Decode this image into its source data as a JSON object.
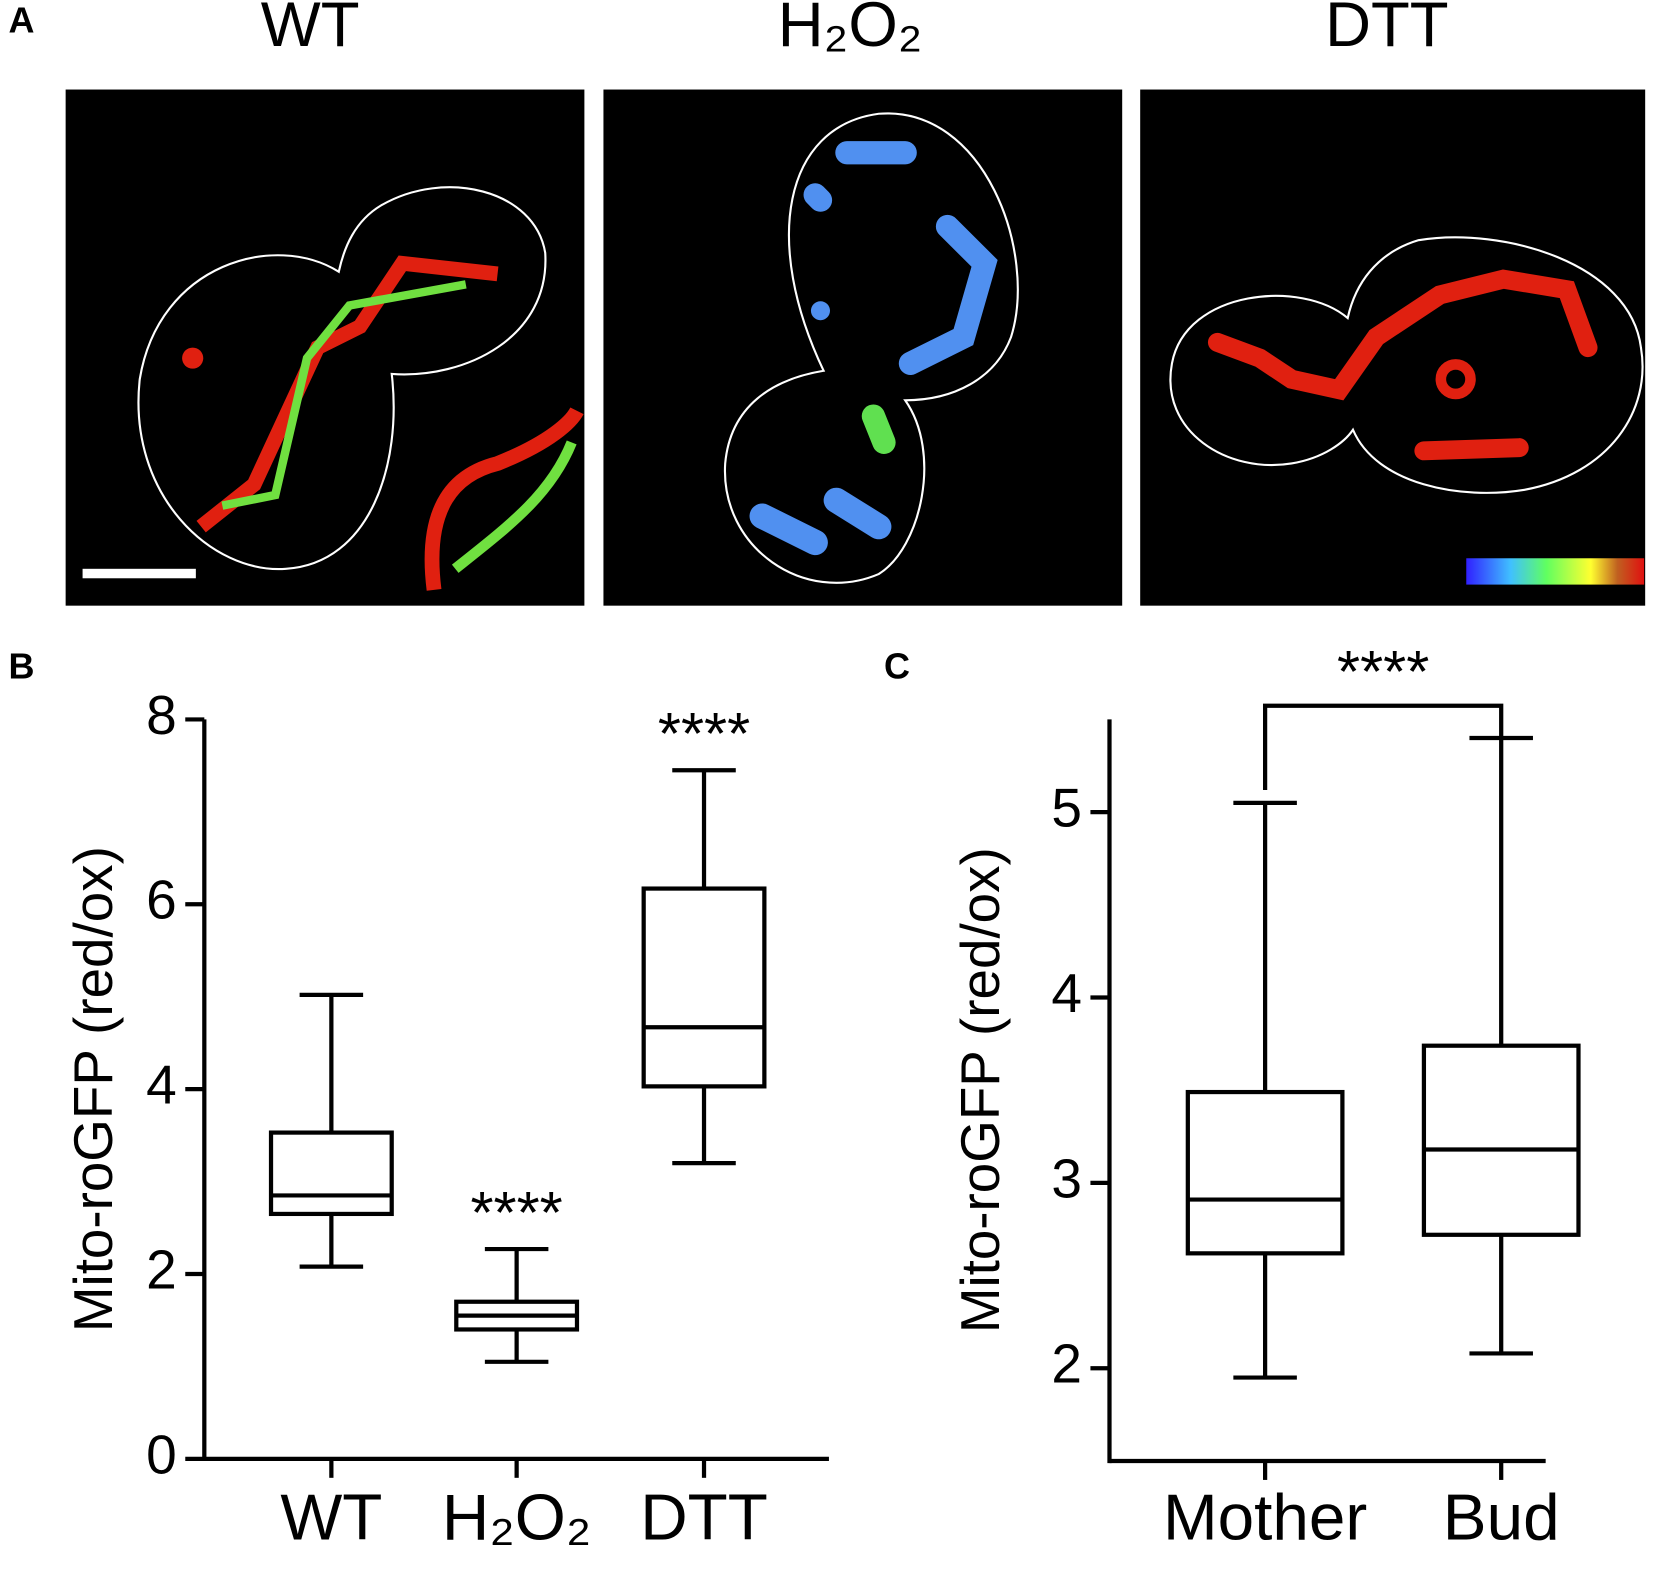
{
  "images": {
    "label": "A",
    "titles": [
      "WT",
      "H₂O₂",
      "DTT"
    ]
  },
  "chart_data": [
    {
      "type": "box",
      "label": "B",
      "ylabel": "Mito-roGFP (red/ox)",
      "categories": [
        "WT",
        "H₂O₂",
        "DTT"
      ],
      "whisker_low": [
        2.08,
        1.05,
        3.2
      ],
      "q1": [
        2.65,
        1.4,
        4.03
      ],
      "median": [
        2.85,
        1.55,
        4.67
      ],
      "q3": [
        3.53,
        1.7,
        6.17
      ],
      "whisker_high": [
        5.02,
        2.27,
        7.45
      ],
      "significance": [
        null,
        "****",
        "****"
      ],
      "ylim": [
        0,
        8
      ],
      "yticks": [
        0,
        2,
        4,
        6,
        8
      ],
      "color": "#000000"
    },
    {
      "type": "box",
      "label": "C",
      "ylabel": "Mito-roGFP (red/ox)",
      "categories": [
        "Mother",
        "Bud"
      ],
      "whisker_low": [
        1.95,
        2.08
      ],
      "q1": [
        2.62,
        2.72
      ],
      "median": [
        2.91,
        3.18
      ],
      "q3": [
        3.49,
        3.74
      ],
      "whisker_high": [
        5.05,
        5.4
      ],
      "bracket_label": "****",
      "ylim": [
        1.5,
        5.5
      ],
      "yticks": [
        2,
        3,
        4,
        5
      ],
      "color": "#000000"
    }
  ]
}
